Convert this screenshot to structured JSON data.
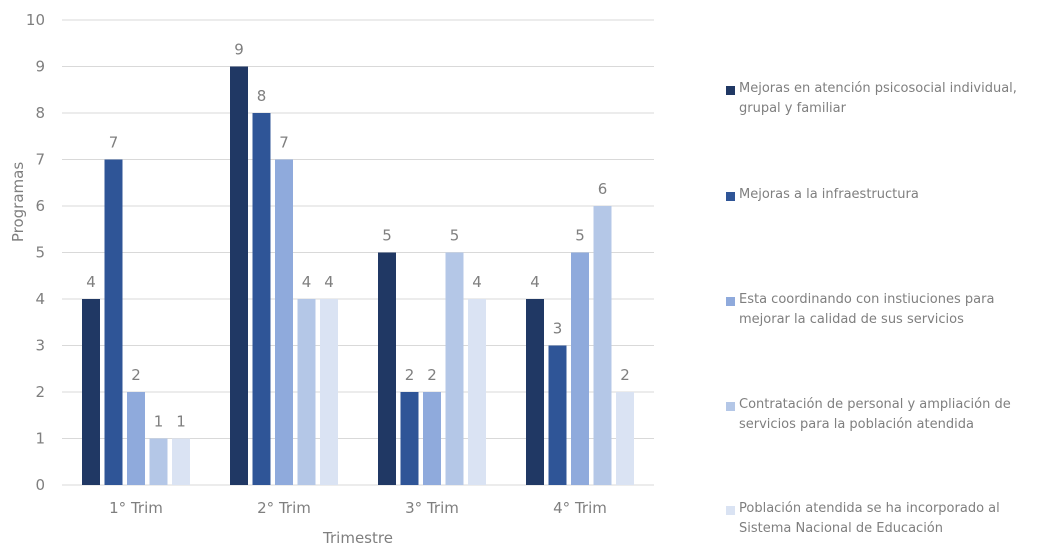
{
  "chart_data": {
    "type": "bar",
    "title": "",
    "xlabel": "Trimestre",
    "ylabel": "Programas",
    "ylim": [
      0,
      10
    ],
    "yticks": [
      "0",
      "1",
      "2",
      "3",
      "4",
      "5",
      "6",
      "7",
      "8",
      "9",
      "10"
    ],
    "grid": true,
    "legend_position": "right",
    "categories": [
      "1° Trim",
      "2° Trim",
      "3° Trim",
      "4° Trim"
    ],
    "series": [
      {
        "name": "Mejoras en atención psicosocial individual, grupal y familiar",
        "color": "#203864",
        "values": [
          4,
          9,
          5,
          4
        ]
      },
      {
        "name": "Mejoras a la  infraestructura",
        "color": "#2f5597",
        "values": [
          7,
          8,
          2,
          3
        ]
      },
      {
        "name": "Esta coordinando con instiuciones para mejorar la calidad de sus servicios",
        "color": "#8faadc",
        "values": [
          2,
          7,
          2,
          5
        ]
      },
      {
        "name": "Contratación de personal y ampliación de servicios para la población atendida",
        "color": "#b4c7e7",
        "values": [
          1,
          4,
          5,
          6
        ]
      },
      {
        "name": "Población atendida se ha incorporado al Sistema Nacional de Educación",
        "color": "#dae3f3",
        "values": [
          1,
          4,
          4,
          2
        ]
      }
    ]
  }
}
